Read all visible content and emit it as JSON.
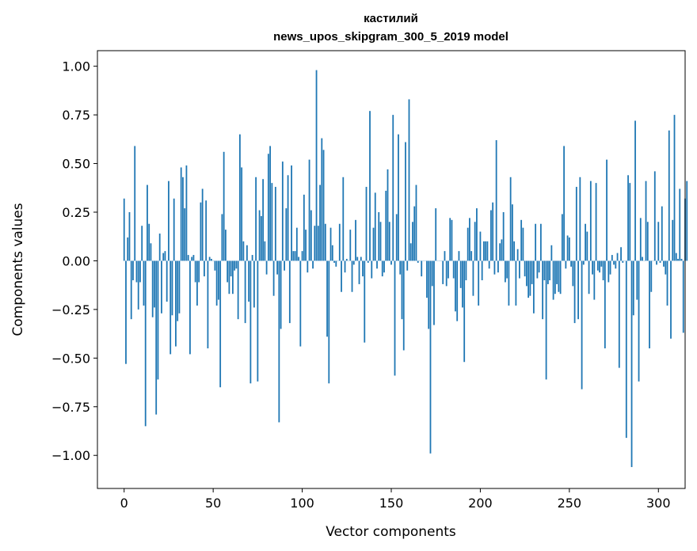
{
  "chart_data": {
    "type": "bar",
    "title": "кастилий",
    "subtitle": "news_upos_skipgram_300_5_2019 model",
    "xlabel": "Vector components",
    "ylabel": "Components values",
    "xlim": [
      -15,
      315
    ],
    "ylim": [
      -1.17,
      1.08
    ],
    "xticks": [
      0,
      50,
      100,
      150,
      200,
      250,
      300
    ],
    "yticks": [
      1.0,
      0.75,
      0.5,
      0.25,
      0.0,
      -0.25,
      -0.5,
      -0.75,
      -1.0
    ],
    "ytick_labels": [
      "1.00",
      "0.75",
      "0.50",
      "0.25",
      "0.00",
      "−0.25",
      "−0.50",
      "−0.75",
      "−1.00"
    ],
    "grid": false,
    "bar_color": "#1f77b4",
    "values": [
      0.32,
      -0.53,
      0.12,
      0.25,
      -0.3,
      -0.1,
      0.59,
      -0.11,
      -0.25,
      -0.11,
      0.18,
      -0.23,
      -0.85,
      0.39,
      0.19,
      0.09,
      -0.29,
      -0.24,
      -0.79,
      -0.61,
      0.14,
      -0.27,
      0.04,
      0.05,
      -0.21,
      0.41,
      -0.48,
      -0.28,
      0.32,
      -0.44,
      -0.31,
      -0.27,
      0.48,
      0.43,
      0.27,
      0.49,
      0.03,
      -0.48,
      0.02,
      0.03,
      -0.11,
      -0.23,
      -0.11,
      0.3,
      0.37,
      -0.08,
      0.31,
      -0.45,
      0.02,
      0.01,
      0.0,
      -0.05,
      -0.23,
      -0.2,
      -0.65,
      0.24,
      0.56,
      0.16,
      -0.11,
      -0.17,
      -0.08,
      -0.17,
      -0.05,
      -0.04,
      -0.3,
      0.65,
      0.48,
      0.1,
      -0.32,
      0.08,
      -0.21,
      -0.63,
      0.03,
      -0.24,
      0.43,
      -0.62,
      0.26,
      0.23,
      0.42,
      0.1,
      -0.07,
      0.55,
      0.59,
      0.4,
      -0.18,
      0.38,
      -0.07,
      -0.83,
      -0.35,
      0.51,
      -0.05,
      0.27,
      0.44,
      -0.32,
      0.49,
      0.05,
      0.05,
      0.17,
      0.02,
      -0.44,
      0.05,
      0.34,
      0.16,
      -0.06,
      0.52,
      0.26,
      -0.04,
      0.18,
      0.98,
      0.18,
      0.39,
      0.63,
      0.57,
      0.19,
      -0.39,
      -0.63,
      0.17,
      0.08,
      -0.01,
      -0.03,
      0.0,
      0.19,
      -0.16,
      0.43,
      -0.06,
      0.01,
      0.0,
      0.16,
      -0.16,
      -0.02,
      0.21,
      0.02,
      -0.12,
      0.02,
      -0.08,
      -0.42,
      0.38,
      -0.01,
      0.77,
      -0.09,
      0.17,
      0.35,
      -0.04,
      0.25,
      0.2,
      -0.08,
      -0.06,
      0.36,
      0.47,
      0.2,
      -0.02,
      0.75,
      -0.59,
      0.24,
      0.65,
      -0.07,
      -0.3,
      -0.46,
      0.61,
      -0.05,
      0.83,
      0.09,
      0.2,
      0.28,
      0.39,
      -0.01,
      0.0,
      -0.08,
      0.0,
      0.0,
      -0.19,
      -0.35,
      -0.99,
      -0.13,
      -0.33,
      0.27,
      0.0,
      0.0,
      0.0,
      -0.12,
      0.05,
      -0.13,
      -0.09,
      0.22,
      0.21,
      -0.09,
      -0.26,
      -0.31,
      0.05,
      -0.14,
      -0.24,
      -0.52,
      -0.1,
      0.17,
      0.22,
      0.05,
      -0.18,
      0.2,
      0.27,
      -0.23,
      0.15,
      -0.1,
      0.1,
      0.1,
      0.1,
      -0.04,
      0.26,
      0.3,
      -0.07,
      0.62,
      -0.06,
      0.09,
      0.11,
      0.25,
      -0.11,
      -0.09,
      -0.23,
      0.43,
      0.29,
      0.1,
      -0.23,
      0.06,
      -0.09,
      0.21,
      0.17,
      -0.08,
      -0.13,
      -0.19,
      -0.18,
      -0.12,
      -0.27,
      0.19,
      -0.09,
      -0.06,
      0.19,
      -0.3,
      -0.1,
      -0.61,
      -0.12,
      -0.1,
      0.08,
      -0.2,
      -0.17,
      -0.12,
      -0.16,
      -0.17,
      0.24,
      0.59,
      -0.04,
      0.13,
      0.12,
      -0.03,
      -0.13,
      -0.32,
      0.38,
      -0.3,
      0.43,
      -0.66,
      -0.02,
      0.19,
      0.15,
      -0.17,
      0.41,
      -0.07,
      -0.2,
      0.4,
      -0.05,
      -0.06,
      -0.03,
      -0.1,
      -0.45,
      0.52,
      -0.11,
      -0.07,
      0.03,
      -0.02,
      -0.04,
      0.04,
      -0.55,
      0.07,
      -0.01,
      0.0,
      -0.91,
      0.44,
      0.4,
      -1.06,
      -0.28,
      0.72,
      -0.2,
      -0.62,
      0.22,
      0.02,
      0.0,
      0.41,
      0.2,
      -0.45,
      -0.16,
      0.0,
      0.46,
      -0.02,
      0.2,
      -0.01,
      0.28,
      -0.03,
      -0.07,
      -0.23,
      0.67,
      -0.4,
      0.21,
      0.75,
      0.04,
      0.01,
      0.37,
      0.01,
      -0.37,
      0.32,
      0.41
    ]
  }
}
